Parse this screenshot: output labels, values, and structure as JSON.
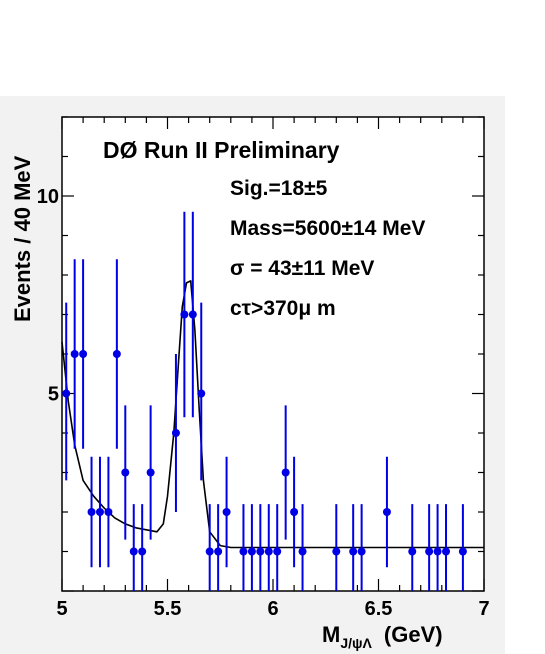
{
  "chart_data": {
    "type": "scatter",
    "title": "DØ Run II Preliminary",
    "annotations": [
      "Sig.=18±5",
      "Mass=5600±14 MeV",
      "σ = 43±11 MeV",
      "cτ>370μ m"
    ],
    "xlabel_main": "M",
    "xlabel_sub": "J/ψΛ",
    "xlabel_unit": "(GeV)",
    "ylabel": "Events / 40  MeV",
    "xlim": [
      5,
      7
    ],
    "ylim": [
      0,
      12
    ],
    "x_ticks": [
      "5",
      "5.5",
      "6",
      "6.5",
      "7"
    ],
    "y_ticks": [
      "5",
      "10"
    ],
    "grid": false,
    "colors": {
      "points": "#0000e6",
      "fit": "#000000",
      "frame_bg": "#ffffff",
      "page_bg": "#f2f2f2"
    },
    "series": [
      {
        "type": "errorbar",
        "points": [
          {
            "x": 5.02,
            "y": 5,
            "lo": 2.8,
            "hi": 7.3
          },
          {
            "x": 5.06,
            "y": 6,
            "lo": 3.6,
            "hi": 8.4
          },
          {
            "x": 5.1,
            "y": 6,
            "lo": 3.6,
            "hi": 8.4
          },
          {
            "x": 5.14,
            "y": 2,
            "lo": 0.6,
            "hi": 3.4
          },
          {
            "x": 5.18,
            "y": 2,
            "lo": 0.6,
            "hi": 3.4
          },
          {
            "x": 5.22,
            "y": 2,
            "lo": 0.6,
            "hi": 3.4
          },
          {
            "x": 5.26,
            "y": 6,
            "lo": 3.6,
            "hi": 8.4
          },
          {
            "x": 5.3,
            "y": 3,
            "lo": 1.3,
            "hi": 4.7
          },
          {
            "x": 5.34,
            "y": 1,
            "lo": 0.0,
            "hi": 2.2
          },
          {
            "x": 5.38,
            "y": 1,
            "lo": 0.0,
            "hi": 2.2
          },
          {
            "x": 5.42,
            "y": 3,
            "lo": 1.3,
            "hi": 4.7
          },
          {
            "x": 5.54,
            "y": 4,
            "lo": 2.0,
            "hi": 6.0
          },
          {
            "x": 5.58,
            "y": 7,
            "lo": 4.4,
            "hi": 9.6
          },
          {
            "x": 5.62,
            "y": 7,
            "lo": 4.4,
            "hi": 9.6
          },
          {
            "x": 5.66,
            "y": 5,
            "lo": 2.8,
            "hi": 7.3
          },
          {
            "x": 5.7,
            "y": 1,
            "lo": 0.0,
            "hi": 2.2
          },
          {
            "x": 5.74,
            "y": 1,
            "lo": 0.0,
            "hi": 2.2
          },
          {
            "x": 5.78,
            "y": 2,
            "lo": 0.6,
            "hi": 3.4
          },
          {
            "x": 5.86,
            "y": 1,
            "lo": 0.0,
            "hi": 2.2
          },
          {
            "x": 5.9,
            "y": 1,
            "lo": 0.0,
            "hi": 2.2
          },
          {
            "x": 5.94,
            "y": 1,
            "lo": 0.0,
            "hi": 2.2
          },
          {
            "x": 5.98,
            "y": 1,
            "lo": 0.0,
            "hi": 2.2
          },
          {
            "x": 6.02,
            "y": 1,
            "lo": 0.0,
            "hi": 2.2
          },
          {
            "x": 6.06,
            "y": 3,
            "lo": 1.3,
            "hi": 4.7
          },
          {
            "x": 6.1,
            "y": 2,
            "lo": 0.6,
            "hi": 3.4
          },
          {
            "x": 6.14,
            "y": 1,
            "lo": 0.0,
            "hi": 2.2
          },
          {
            "x": 6.3,
            "y": 1,
            "lo": 0.0,
            "hi": 2.2
          },
          {
            "x": 6.38,
            "y": 1,
            "lo": 0.0,
            "hi": 2.2
          },
          {
            "x": 6.42,
            "y": 1,
            "lo": 0.0,
            "hi": 2.2
          },
          {
            "x": 6.54,
            "y": 2,
            "lo": 0.6,
            "hi": 3.4
          },
          {
            "x": 6.66,
            "y": 1,
            "lo": 0.0,
            "hi": 2.2
          },
          {
            "x": 6.74,
            "y": 1,
            "lo": 0.0,
            "hi": 2.2
          },
          {
            "x": 6.78,
            "y": 1,
            "lo": 0.0,
            "hi": 2.2
          },
          {
            "x": 6.82,
            "y": 1,
            "lo": 0.0,
            "hi": 2.2
          },
          {
            "x": 6.9,
            "y": 1,
            "lo": 0.0,
            "hi": 2.2
          }
        ]
      },
      {
        "type": "line",
        "x": [
          5.0,
          5.03,
          5.06,
          5.1,
          5.15,
          5.2,
          5.25,
          5.3,
          5.35,
          5.4,
          5.45,
          5.48,
          5.5,
          5.53,
          5.55,
          5.57,
          5.59,
          5.61,
          5.63,
          5.65,
          5.67,
          5.7,
          5.75,
          5.8,
          6.0,
          7.0
        ],
        "y": [
          6.3,
          4.8,
          3.7,
          2.8,
          2.4,
          2.1,
          1.85,
          1.7,
          1.6,
          1.55,
          1.5,
          1.7,
          2.4,
          4.0,
          5.6,
          7.2,
          7.8,
          7.85,
          6.6,
          4.6,
          2.8,
          1.5,
          1.15,
          1.1,
          1.1,
          1.1
        ]
      }
    ]
  }
}
